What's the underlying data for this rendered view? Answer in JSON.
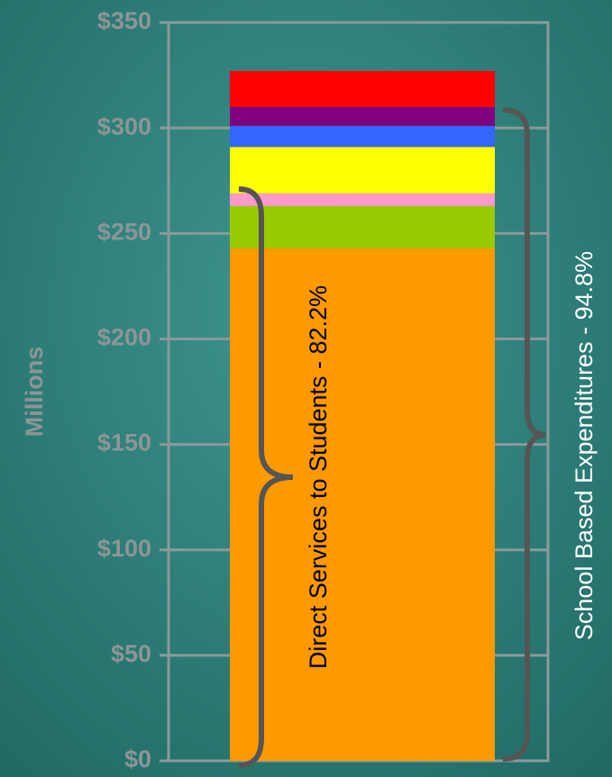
{
  "chart_data": {
    "type": "stacked_bar",
    "y_label": "Millions",
    "categories": [
      null
    ],
    "series": [
      {
        "color": "#ff9900",
        "values": [
          243
        ]
      },
      {
        "color": "#99cc00",
        "values": [
          20
        ]
      },
      {
        "color": "#ff99cc",
        "values": [
          6
        ]
      },
      {
        "color": "#ffff00",
        "values": [
          22
        ]
      },
      {
        "color": "#3366ff",
        "values": [
          10
        ]
      },
      {
        "color": "#800080",
        "values": [
          9
        ]
      },
      {
        "color": "#ff0000",
        "values": [
          17
        ]
      }
    ],
    "ylim": [
      0,
      350
    ],
    "yticks": [
      {
        "value": 0,
        "label": "$0"
      },
      {
        "value": 50,
        "label": "$50"
      },
      {
        "value": 100,
        "label": "$100"
      },
      {
        "value": 150,
        "label": "$150"
      },
      {
        "value": 200,
        "label": "$200"
      },
      {
        "value": 250,
        "label": "$250"
      },
      {
        "value": 300,
        "label": "$300"
      },
      {
        "value": 350,
        "label": "$350"
      }
    ],
    "grid": true,
    "annotations": [
      "Direct Services to Students - 82.2%",
      "School Based Expenditures - 94.8%"
    ]
  }
}
